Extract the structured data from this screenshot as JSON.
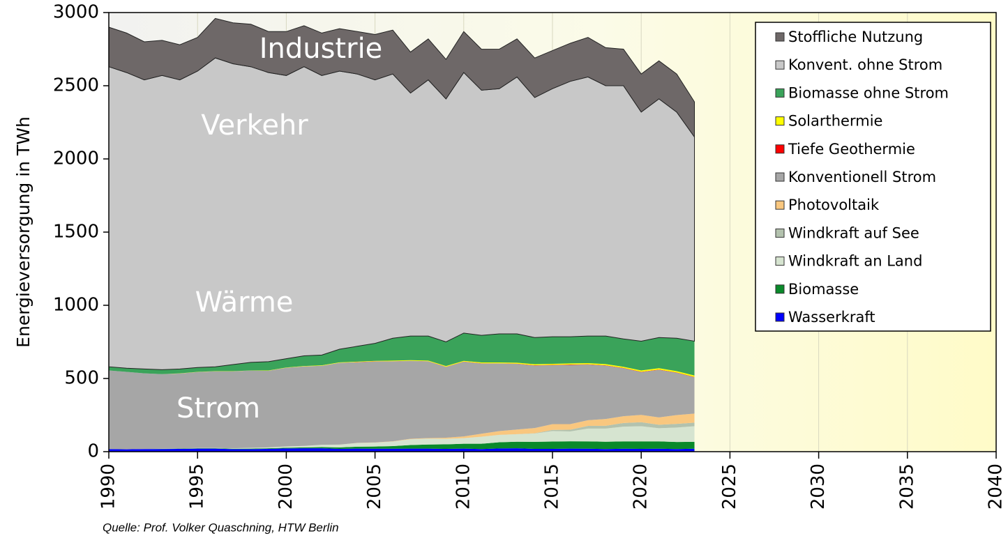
{
  "chart_data": {
    "type": "stacked_area",
    "ylabel": "Energieversorgung in TWh",
    "source": "Quelle: Prof. Volker Quaschning, HTW Berlin",
    "annotations": [
      "Industrie",
      "Verkehr",
      "Wärme",
      "Strom"
    ],
    "x": [
      1990,
      1991,
      1992,
      1993,
      1994,
      1995,
      1996,
      1997,
      1998,
      1999,
      2000,
      2001,
      2002,
      2003,
      2004,
      2005,
      2006,
      2007,
      2008,
      2009,
      2010,
      2011,
      2012,
      2013,
      2014,
      2015,
      2016,
      2017,
      2018,
      2019,
      2020,
      2021,
      2022,
      2023
    ],
    "xlim": [
      1990,
      2040
    ],
    "xticks": [
      1990,
      1995,
      2000,
      2005,
      2010,
      2015,
      2020,
      2025,
      2030,
      2035,
      2040
    ],
    "ylim": [
      0,
      3000
    ],
    "yticks": [
      0,
      500,
      1000,
      1500,
      2000,
      2500,
      3000
    ],
    "grid": true,
    "legend": "upper right",
    "series": [
      {
        "name": "Wasserkraft",
        "color": "#0000ff",
        "values": [
          17,
          16,
          18,
          18,
          19,
          21,
          21,
          17,
          17,
          19,
          22,
          23,
          23,
          19,
          21,
          20,
          20,
          21,
          21,
          19,
          21,
          18,
          22,
          23,
          19,
          19,
          21,
          20,
          18,
          20,
          19,
          20,
          18,
          20
        ]
      },
      {
        "name": "Biomasse",
        "color": "#0a8a2a",
        "values": [
          1,
          0,
          0,
          1,
          2,
          2,
          2,
          3,
          4,
          4,
          5,
          6,
          8,
          10,
          13,
          15,
          18,
          24,
          28,
          31,
          33,
          36,
          42,
          45,
          48,
          50,
          50,
          50,
          50,
          50,
          51,
          50,
          48,
          47
        ]
      },
      {
        "name": "Windkraft an Land",
        "color": "#d6e4d0",
        "values": [
          0,
          0,
          0,
          1,
          1,
          2,
          2,
          3,
          5,
          6,
          9,
          10,
          16,
          19,
          25,
          27,
          31,
          40,
          40,
          38,
          38,
          48,
          50,
          51,
          57,
          72,
          67,
          88,
          90,
          101,
          104,
          90,
          99,
          107
        ]
      },
      {
        "name": "Windkraft auf See",
        "color": "#b3c2ae",
        "values": [
          0,
          0,
          0,
          0,
          0,
          0,
          0,
          0,
          0,
          0,
          0,
          0,
          0,
          0,
          0,
          0,
          0,
          0,
          0,
          0,
          0.2,
          0.6,
          0.7,
          0.9,
          1.5,
          8,
          12,
          18,
          19,
          25,
          27,
          24,
          25,
          24
        ]
      },
      {
        "name": "Photovoltaik",
        "color": "#f9c77f",
        "values": [
          0,
          0,
          0,
          0,
          0,
          0,
          0,
          0,
          0,
          0,
          0,
          0,
          0,
          0,
          1,
          1,
          2,
          3,
          4,
          7,
          12,
          20,
          26,
          31,
          36,
          39,
          38,
          39,
          46,
          46,
          50,
          50,
          60,
          62
        ]
      },
      {
        "name": "Konventionell Strom",
        "color": "#a6a6a6",
        "values": [
          537,
          529,
          517,
          510,
          512,
          519,
          524,
          526,
          528,
          524,
          537,
          544,
          540,
          559,
          551,
          553,
          546,
          532,
          524,
          484,
          510,
          480,
          462,
          449,
          427,
          403,
          405,
          380,
          365,
          328,
          293,
          325,
          289,
          249
        ]
      },
      {
        "name": "Tiefe Geothermie",
        "color": "#ff0000",
        "values": [
          0,
          0,
          0,
          0,
          0,
          0,
          0,
          0,
          0,
          0,
          0,
          0,
          0,
          0,
          1,
          1,
          1,
          1,
          1,
          1,
          1,
          1,
          1,
          1,
          2,
          2,
          2,
          2,
          2,
          2,
          2,
          2,
          2,
          2
        ]
      },
      {
        "name": "Solarthermie",
        "color": "#ffff00",
        "values": [
          0,
          0,
          0,
          0,
          1,
          1,
          1,
          1,
          1,
          2,
          2,
          2,
          3,
          3,
          3,
          3,
          4,
          4,
          4,
          5,
          5,
          6,
          6,
          7,
          7,
          7,
          8,
          8,
          8,
          8,
          9,
          9,
          9,
          9
        ]
      },
      {
        "name": "Biomasse ohne Strom",
        "color": "#3aa35a",
        "values": [
          25,
          25,
          30,
          30,
          30,
          30,
          30,
          45,
          55,
          60,
          60,
          70,
          70,
          90,
          105,
          120,
          153,
          165,
          168,
          165,
          190,
          185,
          195,
          197,
          182,
          185,
          182,
          185,
          192,
          190,
          200,
          210,
          225,
          235
        ]
      },
      {
        "name": "Konvent. ohne Strom",
        "color": "#c8c8c8",
        "values": [
          2050,
          2020,
          1975,
          2010,
          1975,
          2025,
          2110,
          2055,
          2020,
          1975,
          1935,
          1975,
          1910,
          1900,
          1860,
          1800,
          1805,
          1660,
          1750,
          1660,
          1780,
          1675,
          1675,
          1755,
          1640,
          1695,
          1745,
          1770,
          1710,
          1730,
          1565,
          1630,
          1545,
          1395
        ]
      },
      {
        "name": "Stoffliche Nutzung",
        "color": "#6e6868",
        "values": [
          270,
          270,
          260,
          240,
          240,
          230,
          270,
          280,
          290,
          280,
          300,
          280,
          290,
          290,
          290,
          310,
          300,
          280,
          280,
          270,
          280,
          280,
          270,
          260,
          270,
          260,
          260,
          270,
          260,
          250,
          260,
          260,
          260,
          240
        ]
      }
    ]
  }
}
